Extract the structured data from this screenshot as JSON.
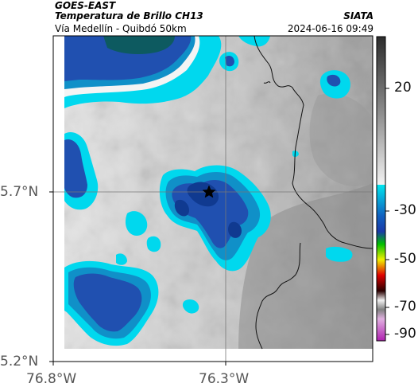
{
  "header": {
    "satellite": "GOES-EAST",
    "product": "Temperatura de Brillo CH13",
    "region": "Vía Medellín - Quibdó 50km",
    "organization": "SIATA",
    "datetime": "2024-06-16 09:49"
  },
  "axes": {
    "lat_ticks": [
      {
        "value": 5.7,
        "label": "5.7°N"
      },
      {
        "value": 5.2,
        "label": "5.2°N"
      }
    ],
    "lon_ticks": [
      {
        "value": -76.8,
        "label": "76.8°W"
      },
      {
        "value": -76.3,
        "label": "76.3°W"
      }
    ]
  },
  "colorbar": {
    "tick_labels": [
      "20",
      "-30",
      "-50",
      "-70",
      "-90"
    ],
    "colors": {
      "warm_top": "#303030",
      "warm_bottom": "#f0f0f0",
      "cold_cyan": "#00e5ee",
      "cold_blue": "#1a3aa8",
      "green": "#00c000",
      "yellow": "#f0f000",
      "red": "#e00000",
      "dark": "#2a0000",
      "magenta": "#d050d0"
    }
  },
  "map": {
    "marker": "star-icon",
    "cloud_colors": {
      "white": "#f4f4f4",
      "cyan": "#00d8ee",
      "teal": "#1090c8",
      "blue": "#2050b0",
      "deep": "#103a90",
      "darkteal": "#0d5a60"
    }
  }
}
